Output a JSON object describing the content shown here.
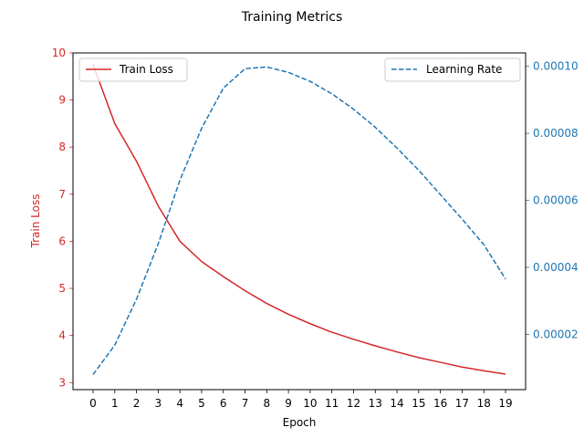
{
  "chart_data": {
    "type": "line",
    "title": "Training Metrics",
    "xlabel": "Epoch",
    "y_left_label": "Train Loss",
    "x": [
      0,
      1,
      2,
      3,
      4,
      5,
      6,
      7,
      8,
      9,
      10,
      11,
      12,
      13,
      14,
      15,
      16,
      17,
      18,
      19
    ],
    "x_ticks": [
      "0",
      "1",
      "2",
      "3",
      "4",
      "5",
      "6",
      "7",
      "8",
      "9",
      "10",
      "11",
      "12",
      "13",
      "14",
      "15",
      "16",
      "17",
      "18",
      "19"
    ],
    "y_left_ticks": [
      "3",
      "4",
      "5",
      "6",
      "7",
      "8",
      "9",
      "10"
    ],
    "y_left_lim": [
      2.85,
      10.0
    ],
    "y_right_ticks": [
      "0.00002",
      "0.00004",
      "0.00006",
      "0.00008",
      "0.00010"
    ],
    "y_right_tick_values": [
      2e-05,
      4e-05,
      6e-05,
      8e-05,
      0.0001
    ],
    "y_right_lim": [
      3.5e-06,
      0.000104
    ],
    "series": [
      {
        "name": "Train Loss",
        "axis": "left",
        "style": "solid",
        "color": "#d62728",
        "legend_position": "upper left",
        "values": [
          9.75,
          8.5,
          7.7,
          6.75,
          6.0,
          5.57,
          5.25,
          4.95,
          4.68,
          4.45,
          4.25,
          4.07,
          3.92,
          3.78,
          3.65,
          3.53,
          3.43,
          3.33,
          3.25,
          3.18
        ]
      },
      {
        "name": "Learning Rate",
        "axis": "right",
        "style": "dashed",
        "color": "#1f77b4",
        "legend_position": "upper right",
        "values": [
          8e-06,
          1.68e-05,
          3.05e-05,
          4.7e-05,
          6.6e-05,
          8.15e-05,
          9.35e-05,
          9.93e-05,
          9.98e-05,
          9.82e-05,
          9.55e-05,
          9.18e-05,
          8.72e-05,
          8.18e-05,
          7.56e-05,
          6.9e-05,
          6.17e-05,
          5.44e-05,
          4.68e-05,
          3.65e-05
        ]
      }
    ],
    "grid": false,
    "colors": {
      "left_axis": "#d62728",
      "right_axis": "#1f77b4",
      "frame": "#000000"
    }
  }
}
